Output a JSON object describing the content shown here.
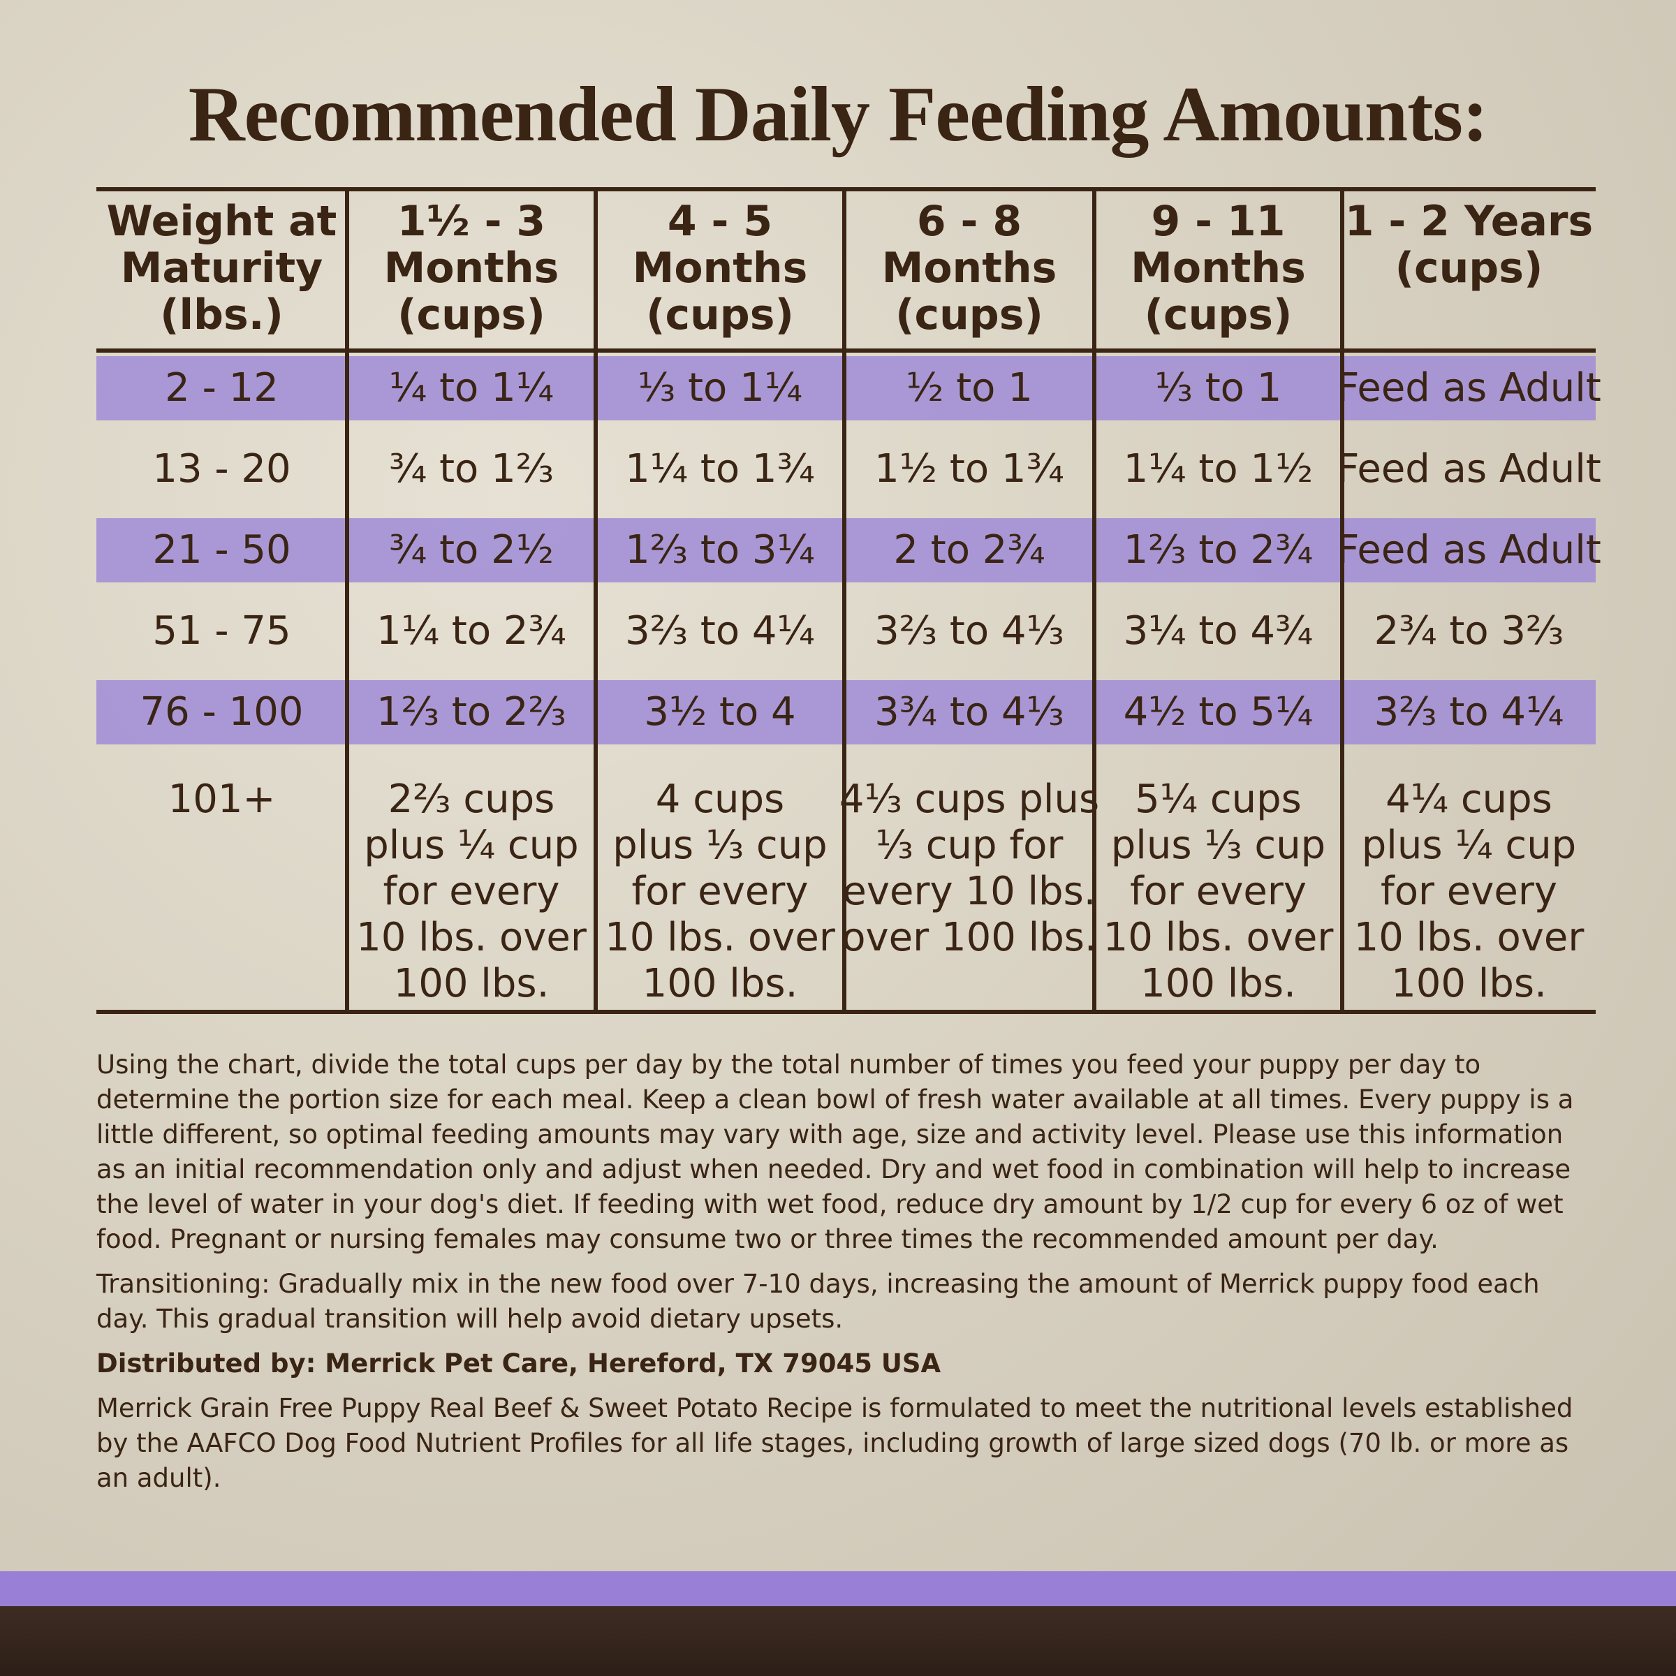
{
  "title": "Recommended Daily Feeding Amounts:",
  "table": {
    "headers": [
      [
        "Weight at",
        "Maturity",
        "(lbs.)"
      ],
      [
        "1½ - 3",
        "Months",
        "(cups)"
      ],
      [
        "4 - 5",
        "Months",
        "(cups)"
      ],
      [
        "6 - 8",
        "Months",
        "(cups)"
      ],
      [
        "9 - 11",
        "Months",
        "(cups)"
      ],
      [
        "1 - 2 Years",
        "(cups)"
      ]
    ],
    "rows": [
      [
        "2 - 12",
        "¼ to 1¼",
        "⅓ to 1¼",
        "½ to 1",
        "⅓ to 1",
        "Feed as Adult"
      ],
      [
        "13 - 20",
        "¾ to 1⅔",
        "1¼ to 1¾",
        "1½ to 1¾",
        "1¼ to 1½",
        "Feed as Adult"
      ],
      [
        "21 - 50",
        "¾ to 2½",
        "1⅔ to 3¼",
        "2 to 2¾",
        "1⅔ to 2¾",
        "Feed as Adult"
      ],
      [
        "51 - 75",
        "1¼ to 2¾",
        "3⅔ to 4¼",
        "3⅔ to 4⅓",
        "3¼ to 4¾",
        "2¾ to 3⅔"
      ],
      [
        "76 - 100",
        "1⅔ to 2⅔",
        "3½ to 4",
        "3¾ to 4⅓",
        "4½ to 5¼",
        "3⅔ to 4¼"
      ],
      [
        [
          "101+"
        ],
        [
          "2⅔ cups",
          "plus ¼ cup",
          "for every",
          "10 lbs. over",
          "100 lbs."
        ],
        [
          "4 cups",
          "plus ⅓ cup",
          "for every",
          "10 lbs. over",
          "100 lbs."
        ],
        [
          "4⅓ cups plus",
          "⅓ cup for",
          "every 10 lbs.",
          "over 100 lbs."
        ],
        [
          "5¼ cups",
          "plus ⅓ cup",
          "for every",
          "10 lbs. over",
          "100 lbs."
        ],
        [
          "4¼ cups",
          "plus ¼ cup",
          "for every",
          "10 lbs. over",
          "100 lbs."
        ]
      ]
    ]
  },
  "notes": [
    "Using the chart, divide the total cups per day by the total number of times you feed your puppy per day to determine the portion size for each meal. Keep a clean bowl of fresh water available at all times. Every puppy is a little different, so optimal feeding amounts may vary with age, size and activity level. Please use this information as an initial recommendation only and adjust when needed. Dry and wet food in combination will help to increase the level of water in your dog's diet. If feeding with wet food, reduce dry amount by 1/2 cup for every 6 oz of wet food. Pregnant or nursing females may consume two or three times the recommended amount per day.",
    "Transitioning: Gradually mix in the new food over 7-10 days, increasing the amount of Merrick puppy food each day. This gradual transition will help avoid dietary upsets."
  ],
  "distributor": "Distributed by: Merrick Pet Care, Hereford, TX 79045 USA",
  "statement": "Merrick Grain Free Puppy Real Beef & Sweet Potato Recipe is formulated to meet the nutritional levels established by the AAFCO Dog Food Nutrient Profiles for all life stages, including growth of large sized dogs (70 lb. or more as an adult)."
}
